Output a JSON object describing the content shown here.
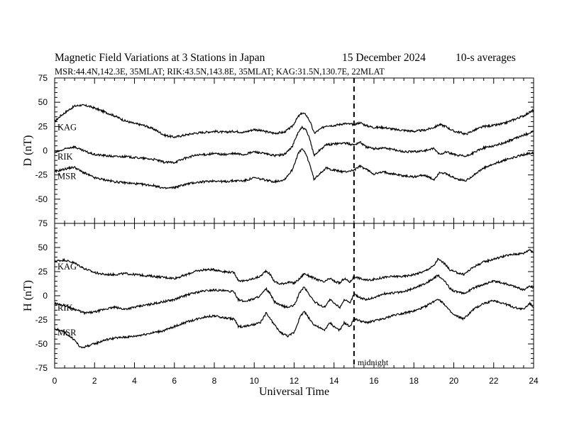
{
  "header": {
    "title": "Magnetic Field Variations at 3 Stations in Japan",
    "date": "15 December 2024",
    "averaging": "10-s averages",
    "subtitle": "MSR:44.4N,142.3E, 35MLAT;  RIK:43.5N,143.8E, 35MLAT;  KAG:31.5N,130.7E, 22MLAT"
  },
  "chart_data": [
    {
      "type": "line",
      "panel": "D",
      "ylabel": "D (nT)",
      "xlabel": "",
      "xlim": [
        0,
        24
      ],
      "ylim": [
        -75,
        75
      ],
      "yticks": [
        -75,
        -50,
        -25,
        0,
        25,
        50,
        75
      ],
      "xticks": [
        0,
        2,
        4,
        6,
        8,
        10,
        12,
        14,
        16,
        18,
        20,
        22,
        24
      ],
      "annotation_line": {
        "x": 15
      },
      "series": [
        {
          "name": "KAG",
          "x": [
            0,
            0.3,
            0.7,
            1.0,
            1.3,
            1.7,
            2.0,
            2.5,
            3.0,
            3.5,
            4.0,
            4.5,
            5.0,
            5.5,
            6.0,
            6.5,
            7.0,
            7.5,
            8.0,
            8.5,
            9.0,
            9.5,
            10.0,
            10.5,
            11.0,
            11.5,
            11.9,
            12.2,
            12.4,
            12.6,
            12.8,
            13.0,
            13.3,
            13.6,
            14.0,
            14.5,
            15.0,
            15.3,
            15.6,
            16.0,
            16.5,
            17.0,
            17.5,
            18.0,
            18.5,
            19.0,
            19.3,
            19.6,
            20.0,
            20.3,
            20.6,
            21.0,
            21.5,
            22.0,
            22.5,
            23.0,
            23.5,
            24.0
          ],
          "y": [
            30,
            36,
            42,
            46,
            47,
            46,
            44,
            40,
            36,
            31,
            28,
            26,
            22,
            16,
            14,
            16,
            18,
            19,
            20,
            19,
            20,
            19,
            22,
            20,
            18,
            19,
            25,
            35,
            39,
            37,
            30,
            18,
            22,
            26,
            26,
            28,
            27,
            29,
            26,
            24,
            24,
            22,
            21,
            20,
            21,
            24,
            27,
            25,
            20,
            19,
            17,
            21,
            25,
            26,
            28,
            32,
            36,
            42
          ]
        },
        {
          "name": "RIK",
          "x": [
            0,
            0.3,
            0.7,
            1.0,
            1.3,
            1.7,
            2.0,
            2.5,
            3.0,
            3.5,
            4.0,
            4.5,
            5.0,
            5.5,
            6.0,
            6.5,
            7.0,
            7.5,
            8.0,
            8.5,
            9.0,
            9.5,
            10.0,
            10.5,
            11.0,
            11.5,
            11.9,
            12.2,
            12.4,
            12.6,
            12.8,
            13.0,
            13.3,
            13.6,
            14.0,
            14.5,
            15.0,
            15.3,
            15.6,
            16.0,
            16.5,
            17.0,
            17.5,
            18.0,
            18.5,
            19.0,
            19.3,
            19.6,
            20.0,
            20.3,
            20.6,
            21.0,
            21.5,
            22.0,
            22.5,
            23.0,
            23.5,
            24.0
          ],
          "y": [
            -2,
            0,
            3,
            4,
            1,
            -2,
            -4,
            -5,
            -6,
            -6,
            -7,
            -8,
            -9,
            -12,
            -12,
            -8,
            -5,
            -4,
            -3,
            -4,
            -3,
            -4,
            -1,
            -3,
            -5,
            -4,
            4,
            19,
            24,
            21,
            11,
            -5,
            1,
            6,
            7,
            8,
            6,
            9,
            4,
            2,
            3,
            1,
            -1,
            -1,
            0,
            2,
            -4,
            -1,
            -4,
            -5,
            -6,
            -2,
            3,
            5,
            8,
            12,
            16,
            20
          ]
        },
        {
          "name": "MSR",
          "x": [
            0,
            0.3,
            0.7,
            1.0,
            1.3,
            1.7,
            2.0,
            2.5,
            3.0,
            3.5,
            4.0,
            4.5,
            5.0,
            5.5,
            6.0,
            6.5,
            7.0,
            7.5,
            8.0,
            8.5,
            9.0,
            9.5,
            10.0,
            10.5,
            11.0,
            11.5,
            11.9,
            12.2,
            12.4,
            12.6,
            12.8,
            13.0,
            13.3,
            13.6,
            14.0,
            14.5,
            15.0,
            15.3,
            15.6,
            16.0,
            16.5,
            17.0,
            17.5,
            18.0,
            18.5,
            19.0,
            19.3,
            19.6,
            20.0,
            20.3,
            20.6,
            21.0,
            21.5,
            22.0,
            22.5,
            23.0,
            23.5,
            24.0
          ],
          "y": [
            -22,
            -20,
            -18,
            -17,
            -21,
            -25,
            -28,
            -30,
            -32,
            -33,
            -34,
            -35,
            -36,
            -39,
            -38,
            -35,
            -33,
            -32,
            -31,
            -32,
            -31,
            -31,
            -28,
            -30,
            -32,
            -30,
            -20,
            -3,
            2,
            -4,
            -15,
            -30,
            -23,
            -18,
            -20,
            -22,
            -20,
            -16,
            -19,
            -24,
            -22,
            -24,
            -26,
            -27,
            -25,
            -30,
            -22,
            -24,
            -28,
            -30,
            -31,
            -25,
            -18,
            -14,
            -10,
            -7,
            -4,
            -2
          ]
        }
      ]
    },
    {
      "type": "line",
      "panel": "H",
      "ylabel": "H (nT)",
      "xlabel": "Universal Time",
      "xlim": [
        0,
        24
      ],
      "ylim": [
        -75,
        75
      ],
      "yticks": [
        -75,
        -50,
        -25,
        0,
        25,
        50,
        75
      ],
      "xticks": [
        0,
        2,
        4,
        6,
        8,
        10,
        12,
        14,
        16,
        18,
        20,
        22,
        24
      ],
      "annotation_line": {
        "x": 15,
        "label": "midnight"
      },
      "series": [
        {
          "name": "KAG",
          "x": [
            0,
            0.5,
            1.0,
            1.5,
            2.0,
            2.5,
            3.0,
            3.5,
            4.0,
            4.5,
            5.0,
            5.5,
            6.0,
            6.5,
            7.0,
            7.5,
            8.0,
            8.5,
            9.0,
            9.2,
            9.5,
            10.0,
            10.3,
            10.6,
            10.8,
            11.0,
            11.3,
            11.7,
            12.0,
            12.3,
            12.5,
            12.8,
            13.0,
            13.5,
            13.8,
            14.0,
            14.3,
            14.5,
            14.8,
            15.0,
            15.3,
            15.6,
            16.0,
            16.5,
            17.0,
            17.5,
            18.0,
            18.5,
            19.0,
            19.2,
            19.5,
            19.8,
            20.0,
            20.5,
            21.0,
            21.5,
            22.0,
            22.5,
            23.0,
            23.5,
            23.8,
            24.0
          ],
          "y": [
            36,
            37,
            34,
            28,
            24,
            22,
            22,
            23,
            22,
            21,
            20,
            19,
            18,
            21,
            25,
            27,
            27,
            25,
            24,
            16,
            15,
            18,
            20,
            26,
            22,
            15,
            12,
            14,
            13,
            18,
            23,
            20,
            18,
            14,
            18,
            15,
            13,
            18,
            14,
            20,
            18,
            16,
            17,
            19,
            20,
            20,
            22,
            25,
            31,
            38,
            34,
            27,
            25,
            22,
            30,
            35,
            38,
            41,
            43,
            44,
            48,
            45
          ]
        },
        {
          "name": "RIK",
          "x": [
            0,
            0.5,
            1.0,
            1.5,
            2.0,
            2.5,
            3.0,
            3.5,
            4.0,
            4.5,
            5.0,
            5.5,
            6.0,
            6.5,
            7.0,
            7.5,
            8.0,
            8.5,
            9.0,
            9.2,
            9.5,
            10.0,
            10.3,
            10.6,
            10.8,
            11.0,
            11.3,
            11.7,
            12.0,
            12.3,
            12.5,
            12.8,
            13.0,
            13.5,
            13.8,
            14.0,
            14.3,
            14.5,
            14.8,
            15.0,
            15.3,
            15.6,
            16.0,
            16.5,
            17.0,
            17.5,
            18.0,
            18.5,
            19.0,
            19.2,
            19.5,
            19.8,
            20.0,
            20.5,
            21.0,
            21.5,
            22.0,
            22.5,
            23.0,
            23.5,
            23.8,
            24.0
          ],
          "y": [
            -8,
            -10,
            -14,
            -18,
            -17,
            -14,
            -12,
            -14,
            -12,
            -10,
            -8,
            -6,
            -4,
            0,
            3,
            5,
            6,
            5,
            4,
            -4,
            -6,
            -3,
            0,
            7,
            2,
            -6,
            -10,
            -12,
            -10,
            4,
            9,
            0,
            -6,
            -12,
            -4,
            -8,
            -12,
            -4,
            -8,
            2,
            -2,
            -4,
            -2,
            2,
            3,
            4,
            8,
            12,
            18,
            21,
            16,
            8,
            5,
            2,
            8,
            12,
            15,
            13,
            10,
            6,
            10,
            8
          ]
        },
        {
          "name": "MSR",
          "x": [
            0,
            0.5,
            1.0,
            1.3,
            1.5,
            2.0,
            2.5,
            3.0,
            3.5,
            4.0,
            4.5,
            5.0,
            5.5,
            6.0,
            6.5,
            7.0,
            7.5,
            8.0,
            8.5,
            9.0,
            9.2,
            9.5,
            10.0,
            10.3,
            10.6,
            10.8,
            11.0,
            11.3,
            11.7,
            12.0,
            12.3,
            12.5,
            12.8,
            13.0,
            13.5,
            13.8,
            14.0,
            14.3,
            14.5,
            14.8,
            15.0,
            15.3,
            15.6,
            16.0,
            16.5,
            17.0,
            17.5,
            18.0,
            18.5,
            19.0,
            19.2,
            19.5,
            19.8,
            20.0,
            20.5,
            21.0,
            21.5,
            22.0,
            22.5,
            23.0,
            23.5,
            23.8,
            24.0
          ],
          "y": [
            -34,
            -38,
            -46,
            -54,
            -53,
            -50,
            -46,
            -44,
            -43,
            -42,
            -40,
            -38,
            -36,
            -32,
            -28,
            -25,
            -22,
            -21,
            -23,
            -24,
            -32,
            -32,
            -30,
            -28,
            -18,
            -24,
            -30,
            -38,
            -42,
            -38,
            -22,
            -16,
            -25,
            -30,
            -36,
            -28,
            -32,
            -36,
            -28,
            -32,
            -24,
            -26,
            -28,
            -26,
            -24,
            -20,
            -18,
            -16,
            -12,
            -6,
            -3,
            -8,
            -16,
            -20,
            -24,
            -14,
            -8,
            -5,
            -8,
            -12,
            -14,
            -8,
            -12
          ]
        }
      ]
    }
  ]
}
